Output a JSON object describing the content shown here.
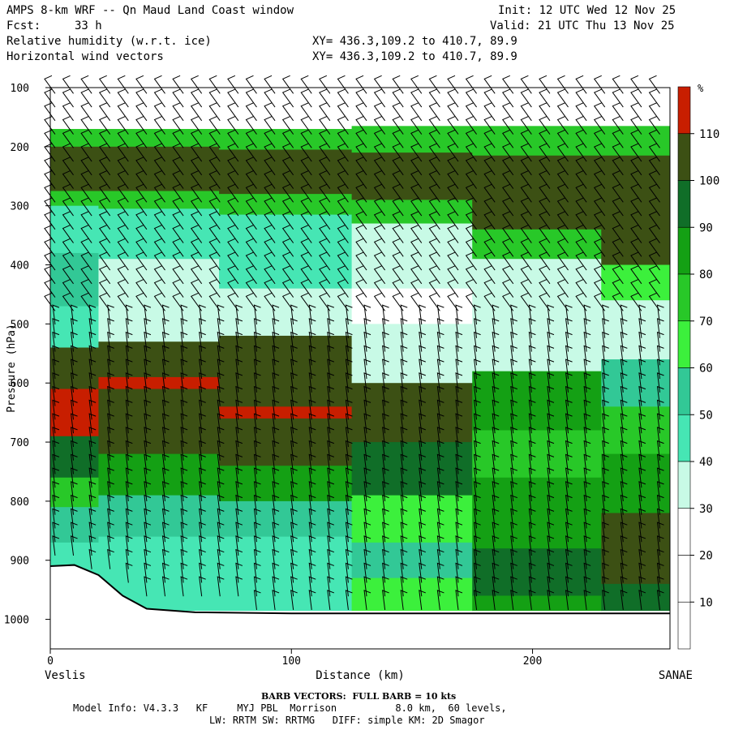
{
  "header": {
    "title": "AMPS 8-km WRF -- Qn Maud Land Coast window",
    "init": "Init: 12 UTC Wed 12 Nov 25",
    "fcst_label": "Fcst:",
    "fcst_value": "33 h",
    "valid": "Valid: 21 UTC Thu 13 Nov 25",
    "field1": "Relative humidity (w.r.t. ice)",
    "field2": "Horizontal wind vectors",
    "xy1": "XY= 436.3,109.2 to 410.7, 89.9",
    "xy2": "XY= 436.3,109.2 to 410.7, 89.9"
  },
  "footer": {
    "barb_note": "BARB VECTORS:  FULL BARB = 10 kts",
    "model_info_1": "Model Info: V4.3.3   KF     MYJ PBL  Morrison          8.0 km,  60 levels,",
    "model_info_2": "LW: RRTM SW: RRTMG   DIFF: simple KM: 2D Smagor"
  },
  "chart_data": {
    "type": "heatmap",
    "title": "Relative humidity (w.r.t. ice)",
    "xlabel": "Distance (km)",
    "ylabel": "Pressure (hPa)",
    "x_start_label": "Veslis",
    "x_end_label": "SANAE",
    "xlim": [
      0,
      257
    ],
    "ylim": [
      100,
      1050
    ],
    "y_axis_inverted": true,
    "x_ticks": [
      0,
      100,
      200
    ],
    "y_ticks": [
      100,
      200,
      300,
      400,
      500,
      600,
      700,
      800,
      900,
      1000
    ],
    "colorbar": {
      "unit": "%",
      "levels": [
        10,
        20,
        30,
        40,
        50,
        60,
        70,
        80,
        90,
        100,
        110
      ],
      "colors": [
        "#ffffff",
        "#ffffff",
        "#ffffff",
        "#c8fae6",
        "#46e6b4",
        "#32c896",
        "#3cf03c",
        "#28c828",
        "#14a014",
        "#106e28",
        "#3c5014",
        "#c81e00"
      ]
    },
    "rh_columns": [
      {
        "x": 0,
        "layers": [
          [
            100,
            170,
            20
          ],
          [
            170,
            200,
            70
          ],
          [
            200,
            275,
            100
          ],
          [
            275,
            300,
            70
          ],
          [
            300,
            380,
            45
          ],
          [
            380,
            470,
            50
          ],
          [
            470,
            540,
            40
          ],
          [
            540,
            610,
            100
          ],
          [
            610,
            690,
            110
          ],
          [
            690,
            760,
            90
          ],
          [
            760,
            810,
            70
          ],
          [
            810,
            870,
            50
          ],
          [
            870,
            910,
            45
          ],
          [
            910,
            960,
            40
          ]
        ]
      },
      {
        "x": 40,
        "layers": [
          [
            100,
            170,
            20
          ],
          [
            170,
            200,
            70
          ],
          [
            200,
            275,
            100
          ],
          [
            275,
            305,
            75
          ],
          [
            305,
            390,
            40
          ],
          [
            390,
            460,
            35
          ],
          [
            460,
            530,
            35
          ],
          [
            530,
            590,
            100
          ],
          [
            590,
            610,
            110
          ],
          [
            610,
            720,
            100
          ],
          [
            720,
            790,
            80
          ],
          [
            790,
            860,
            50
          ],
          [
            860,
            910,
            40
          ],
          [
            910,
            985,
            45
          ]
        ]
      },
      {
        "x": 100,
        "layers": [
          [
            100,
            170,
            20
          ],
          [
            170,
            205,
            70
          ],
          [
            205,
            280,
            100
          ],
          [
            280,
            315,
            70
          ],
          [
            315,
            440,
            40
          ],
          [
            440,
            520,
            35
          ],
          [
            520,
            640,
            100
          ],
          [
            640,
            660,
            110
          ],
          [
            660,
            740,
            100
          ],
          [
            740,
            800,
            80
          ],
          [
            800,
            860,
            50
          ],
          [
            860,
            915,
            40
          ],
          [
            915,
            985,
            45
          ]
        ]
      },
      {
        "x": 150,
        "layers": [
          [
            100,
            165,
            20
          ],
          [
            165,
            210,
            70
          ],
          [
            210,
            290,
            100
          ],
          [
            290,
            330,
            70
          ],
          [
            330,
            440,
            35
          ],
          [
            440,
            500,
            20
          ],
          [
            500,
            600,
            35
          ],
          [
            600,
            700,
            100
          ],
          [
            700,
            790,
            90
          ],
          [
            790,
            870,
            60
          ],
          [
            870,
            930,
            50
          ],
          [
            930,
            985,
            60
          ]
        ]
      },
      {
        "x": 200,
        "layers": [
          [
            100,
            165,
            20
          ],
          [
            165,
            215,
            70
          ],
          [
            215,
            340,
            100
          ],
          [
            340,
            390,
            70
          ],
          [
            390,
            500,
            35
          ],
          [
            500,
            580,
            35
          ],
          [
            580,
            680,
            80
          ],
          [
            680,
            760,
            70
          ],
          [
            760,
            880,
            80
          ],
          [
            880,
            960,
            90
          ],
          [
            960,
            985,
            80
          ]
        ]
      },
      {
        "x": 257,
        "layers": [
          [
            100,
            165,
            20
          ],
          [
            165,
            215,
            70
          ],
          [
            215,
            400,
            100
          ],
          [
            400,
            460,
            60
          ],
          [
            460,
            560,
            35
          ],
          [
            560,
            640,
            50
          ],
          [
            640,
            720,
            70
          ],
          [
            720,
            820,
            80
          ],
          [
            820,
            940,
            100
          ],
          [
            940,
            985,
            90
          ]
        ]
      }
    ],
    "terrain_surface_hPa": [
      [
        0,
        910
      ],
      [
        10,
        908
      ],
      [
        20,
        925
      ],
      [
        30,
        960
      ],
      [
        40,
        982
      ],
      [
        60,
        988
      ],
      [
        100,
        990
      ],
      [
        150,
        990
      ],
      [
        257,
        990
      ]
    ]
  }
}
